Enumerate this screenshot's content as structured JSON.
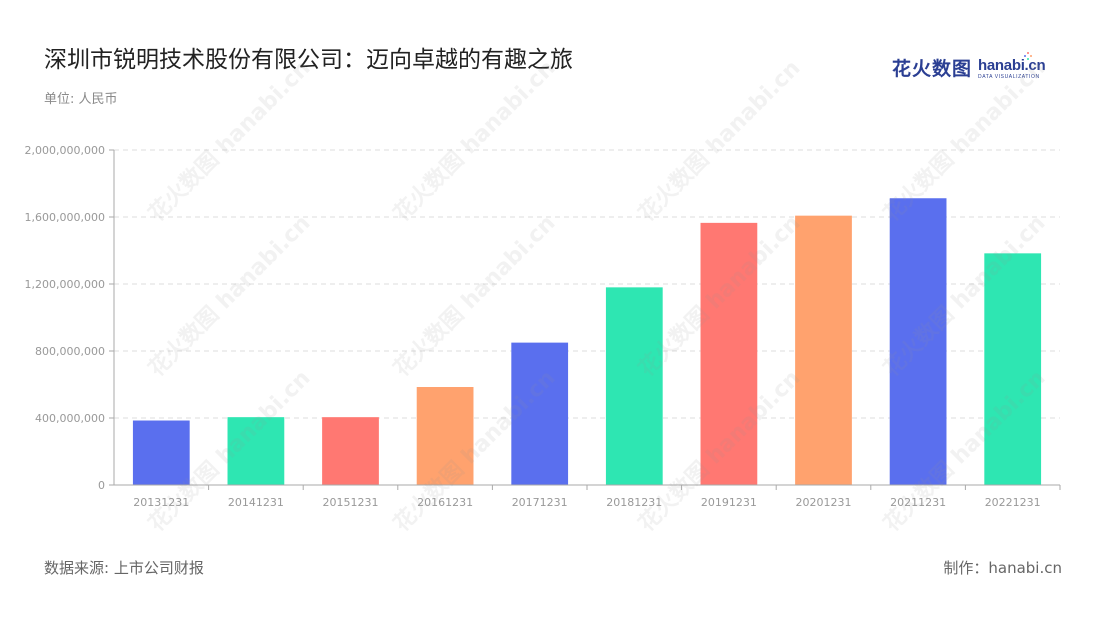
{
  "header": {
    "title": "深圳市锐明技术股份有限公司：迈向卓越的有趣之旅",
    "unit": "单位: 人民币"
  },
  "logo": {
    "cn": "花火数图",
    "en": "hanabi.cn",
    "sub": "DATA VISUALIZATION",
    "watermark": "花火数图 hanabi.cn"
  },
  "footer": {
    "source": "数据来源: 上市公司财报",
    "credit": "制作：hanabi.cn"
  },
  "colors": {
    "blue": "#5A6FEE",
    "green": "#2EE6B2",
    "red": "#FF7872",
    "orange": "#FFA26E",
    "grid": "#dddddd",
    "axis": "#aaaaaa",
    "tick_text": "#999999"
  },
  "chart_data": {
    "type": "bar",
    "title": "深圳市锐明技术股份有限公司：迈向卓越的有趣之旅",
    "xlabel": "",
    "ylabel": "",
    "categories": [
      "20131231",
      "20141231",
      "20151231",
      "20161231",
      "20171231",
      "20181231",
      "20191231",
      "20201231",
      "20211231",
      "20221231"
    ],
    "values": [
      385000000,
      405000000,
      405000000,
      585000000,
      850000000,
      1180000000,
      1565000000,
      1608000000,
      1712000000,
      1383000000
    ],
    "bar_colors": [
      "#5A6FEE",
      "#2EE6B2",
      "#FF7872",
      "#FFA26E",
      "#5A6FEE",
      "#2EE6B2",
      "#FF7872",
      "#FFA26E",
      "#5A6FEE",
      "#2EE6B2"
    ],
    "ylim": [
      0,
      2000000000
    ],
    "yticks": [
      0,
      400000000,
      800000000,
      1200000000,
      1600000000,
      2000000000
    ],
    "ytick_labels": [
      "0",
      "400,000,000",
      "800,000,000",
      "1,200,000,000",
      "1,600,000,000",
      "2,000,000,000"
    ],
    "grid": true,
    "legend": "none"
  }
}
